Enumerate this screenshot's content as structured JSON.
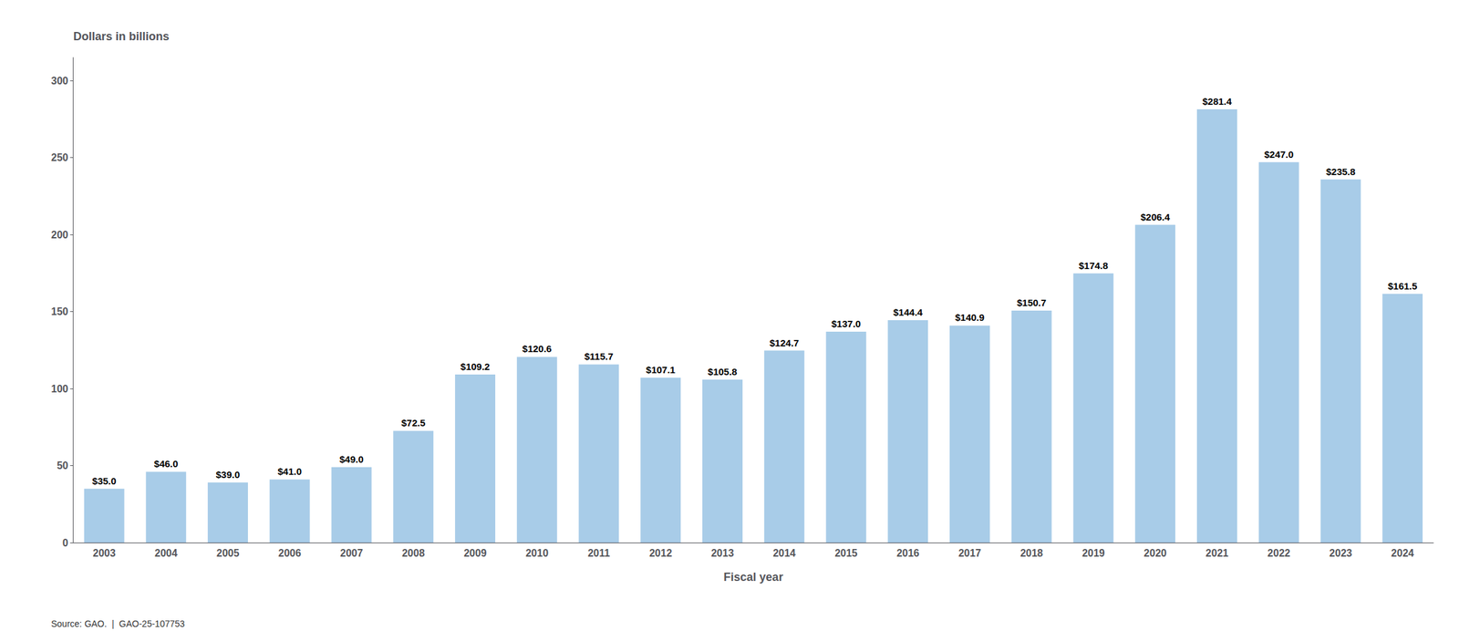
{
  "chart_data": {
    "type": "bar",
    "ylabel": "Dollars in billions",
    "xlabel": "Fiscal year",
    "annotations": [
      "Source: GAO.  |  GAO-25-107753"
    ],
    "categories": [
      "2003",
      "2004",
      "2005",
      "2006",
      "2007",
      "2008",
      "2009",
      "2010",
      "2011",
      "2012",
      "2013",
      "2014",
      "2015",
      "2016",
      "2017",
      "2018",
      "2019",
      "2020",
      "2021",
      "2022",
      "2023",
      "2024"
    ],
    "values": [
      35.0,
      46.0,
      39.0,
      41.0,
      49.0,
      72.5,
      109.2,
      120.6,
      115.7,
      107.1,
      105.8,
      124.7,
      137.0,
      144.4,
      140.9,
      150.7,
      174.8,
      206.4,
      281.4,
      247.0,
      235.8,
      161.5
    ],
    "value_labels": [
      "$35.0",
      "$46.0",
      "$39.0",
      "$41.0",
      "$49.0",
      "$72.5",
      "$109.2",
      "$120.6",
      "$115.7",
      "$107.1",
      "$105.8",
      "$124.7",
      "$137.0",
      "$144.4",
      "$140.9",
      "$150.7",
      "$174.8",
      "$206.4",
      "$281.4",
      "$247.0",
      "$235.8",
      "$161.5"
    ],
    "color": "#a8cce8",
    "ylim": [
      0,
      315
    ],
    "yticks": [
      0,
      50,
      100,
      150,
      200,
      250,
      300
    ],
    "grid": false,
    "data_labels": true
  }
}
